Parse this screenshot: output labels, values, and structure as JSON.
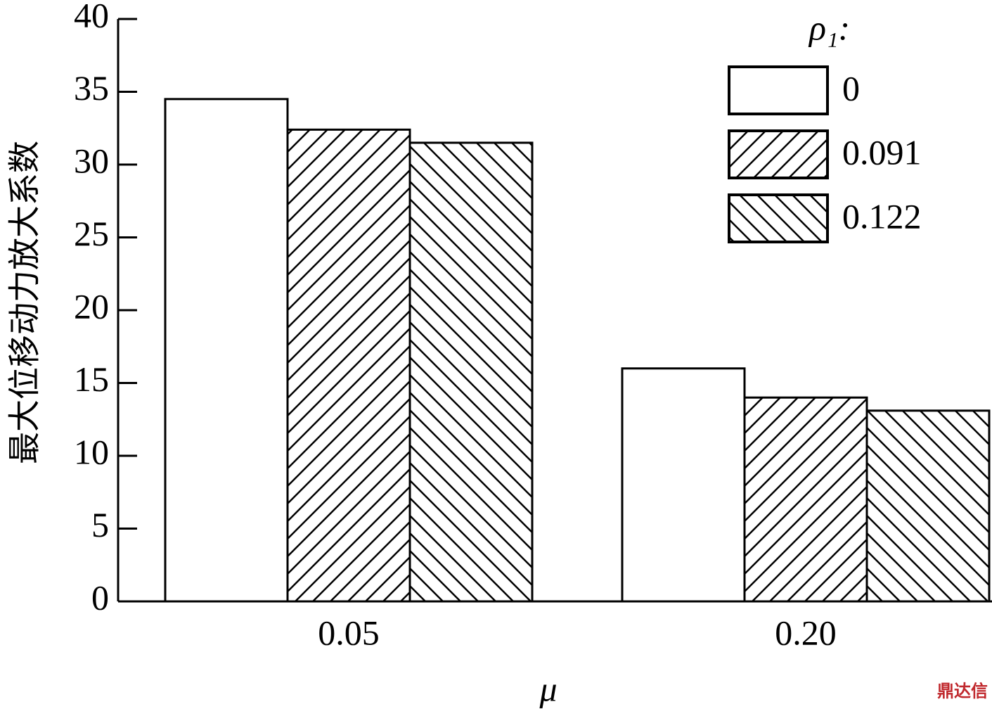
{
  "chart_data": {
    "type": "bar",
    "x_label": "μ",
    "y_label": "最大位移动力放大系数",
    "categories": [
      "0.05",
      "0.20"
    ],
    "legend_title": "ρ₁:",
    "series": [
      {
        "name": "0",
        "color": "#000000",
        "hatch": "none",
        "values": [
          34.5,
          16.0
        ]
      },
      {
        "name": "0.091",
        "color": "#000000",
        "hatch": "/",
        "values": [
          32.4,
          14.0
        ]
      },
      {
        "name": "0.122",
        "color": "#000000",
        "hatch": "\\",
        "values": [
          31.5,
          13.1
        ]
      }
    ],
    "ylim": [
      0,
      40
    ],
    "yticks": [
      0,
      5,
      10,
      15,
      20,
      25,
      30,
      35,
      40
    ],
    "legend_position": "upper right",
    "watermark": "鼎达信"
  }
}
